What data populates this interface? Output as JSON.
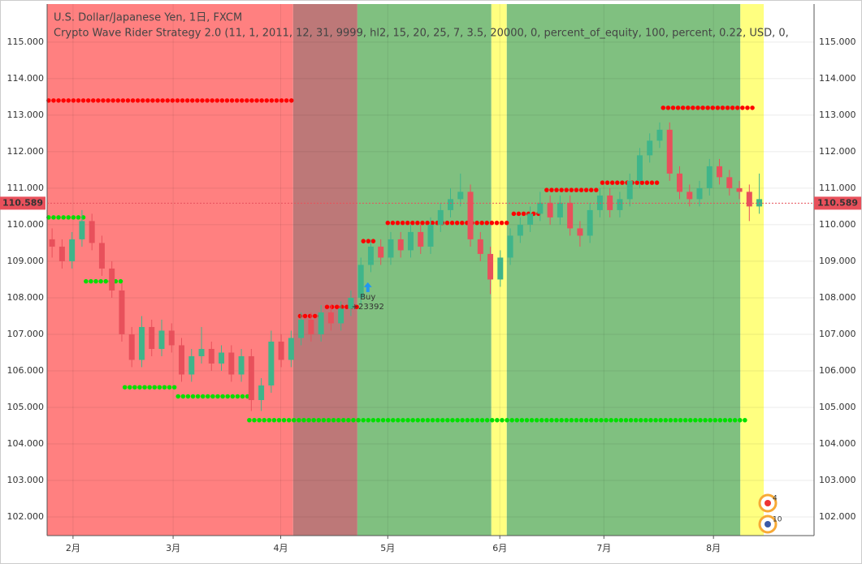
{
  "chart_data": {
    "type": "candlestick",
    "title": "U.S. Dollar/Japanese Yen, 1日, FXCM",
    "subtitle": "Crypto Wave Rider Strategy 2.0 (11, 1, 2011, 12, 31, 9999, hl2, 15, 20, 25, 7, 3.5, 20000, 0, percent_of_equity, 100, percent, 0.22, USD, 0,",
    "xlim": [
      0,
      154
    ],
    "ylim": [
      101.49,
      116.04
    ],
    "xticks": [
      {
        "value": 5.2,
        "label": "2月"
      },
      {
        "value": 25.3,
        "label": "3月"
      },
      {
        "value": 46.9,
        "label": "4月"
      },
      {
        "value": 68.4,
        "label": "5月"
      },
      {
        "value": 90.9,
        "label": "6月"
      },
      {
        "value": 111.8,
        "label": "7月"
      },
      {
        "value": 133.8,
        "label": "8月"
      }
    ],
    "yticks": [
      {
        "value": 102,
        "label": "102.000"
      },
      {
        "value": 103,
        "label": "103.000"
      },
      {
        "value": 104,
        "label": "104.000"
      },
      {
        "value": 105,
        "label": "105.000"
      },
      {
        "value": 106,
        "label": "106.000"
      },
      {
        "value": 107,
        "label": "107.000"
      },
      {
        "value": 108,
        "label": "108.000"
      },
      {
        "value": 109,
        "label": "109.000"
      },
      {
        "value": 110,
        "label": "110.000"
      },
      {
        "value": 111,
        "label": "111.000"
      },
      {
        "value": 112,
        "label": "112.000"
      },
      {
        "value": 113,
        "label": "113.000"
      },
      {
        "value": 114,
        "label": "114.000"
      },
      {
        "value": 115,
        "label": "115.000"
      }
    ],
    "grid": true,
    "up_color": "#3fb58a",
    "down_color": "#e8505b",
    "zones": [
      {
        "x": [
          0,
          49.4
        ],
        "color": "#ff8080"
      },
      {
        "x": [
          49.4,
          62.3
        ],
        "color": "#bd7878"
      },
      {
        "x": [
          62.3,
          89.2
        ],
        "color": "#80c080"
      },
      {
        "x": [
          89.2,
          92.3
        ],
        "color": "#ffff80"
      },
      {
        "x": [
          92.3,
          139.2
        ],
        "color": "#80c080"
      },
      {
        "x": [
          139.2,
          143.9
        ],
        "color": "#ffff80"
      }
    ],
    "x": [
      1,
      3,
      5,
      7,
      9,
      11,
      13,
      15,
      17,
      19,
      21,
      23,
      25,
      27,
      29,
      31,
      33,
      35,
      37,
      39,
      41,
      43,
      45,
      47,
      49,
      51,
      53,
      55,
      57,
      59,
      61,
      63,
      65,
      67,
      69,
      71,
      73,
      75,
      77,
      79,
      81,
      83,
      85,
      87,
      89,
      91,
      93,
      95,
      97,
      99,
      101,
      103,
      105,
      107,
      109,
      111,
      113,
      115,
      117,
      119,
      121,
      123,
      125,
      127,
      129,
      131,
      133,
      135,
      137,
      139,
      141,
      143
    ],
    "open": [
      109.6,
      109.4,
      109.0,
      109.6,
      110.1,
      109.5,
      108.8,
      108.2,
      107.0,
      106.3,
      107.2,
      106.6,
      107.1,
      106.7,
      105.9,
      106.4,
      106.6,
      106.2,
      106.5,
      105.9,
      106.4,
      105.2,
      105.6,
      106.8,
      106.3,
      106.9,
      107.4,
      107.0,
      107.6,
      107.3,
      107.7,
      108.0,
      108.9,
      109.4,
      109.1,
      109.6,
      109.3,
      109.8,
      109.4,
      110.0,
      110.4,
      110.7,
      110.9,
      109.6,
      109.2,
      108.5,
      109.1,
      109.7,
      110.0,
      110.3,
      110.6,
      110.2,
      110.6,
      109.9,
      109.7,
      110.4,
      110.8,
      110.4,
      110.7,
      111.2,
      111.9,
      112.3,
      112.6,
      111.4,
      110.9,
      110.7,
      111.0,
      111.6,
      111.3,
      111.0,
      110.9,
      110.5
    ],
    "high": [
      109.9,
      109.6,
      109.8,
      110.4,
      110.3,
      109.7,
      109.0,
      108.4,
      107.2,
      107.5,
      107.4,
      107.4,
      107.3,
      106.9,
      106.6,
      107.2,
      106.8,
      106.7,
      106.7,
      106.6,
      106.6,
      105.8,
      107.1,
      107.0,
      107.1,
      107.6,
      107.6,
      107.8,
      107.8,
      107.9,
      108.2,
      109.1,
      109.6,
      109.6,
      109.8,
      109.8,
      110.0,
      110.0,
      110.2,
      110.6,
      111.0,
      111.4,
      111.1,
      109.8,
      109.4,
      109.3,
      109.9,
      110.2,
      110.5,
      110.9,
      110.8,
      110.8,
      110.8,
      110.1,
      110.6,
      111.0,
      111.0,
      110.9,
      111.4,
      112.1,
      112.5,
      112.8,
      112.8,
      111.6,
      111.1,
      111.2,
      111.8,
      111.8,
      111.5,
      111.2,
      111.1,
      111.4
    ],
    "low": [
      109.1,
      108.8,
      108.8,
      109.4,
      109.3,
      108.6,
      108.0,
      106.8,
      106.1,
      106.1,
      106.4,
      106.4,
      106.5,
      105.7,
      105.7,
      106.2,
      106.0,
      106.0,
      105.7,
      105.7,
      104.9,
      104.9,
      105.4,
      106.1,
      106.1,
      106.7,
      106.8,
      106.8,
      107.1,
      107.1,
      107.5,
      107.8,
      108.7,
      108.9,
      108.9,
      109.1,
      109.1,
      109.2,
      109.2,
      109.8,
      110.2,
      110.5,
      109.4,
      109.0,
      108.1,
      108.3,
      108.9,
      109.5,
      109.8,
      110.1,
      110.0,
      110.0,
      109.7,
      109.4,
      109.5,
      110.2,
      110.2,
      110.2,
      110.5,
      111.0,
      111.7,
      112.1,
      111.2,
      110.7,
      110.5,
      110.5,
      110.8,
      111.1,
      110.8,
      110.7,
      110.1,
      110.3
    ],
    "close": [
      109.4,
      109.0,
      109.6,
      110.1,
      109.5,
      108.8,
      108.2,
      107.0,
      106.3,
      107.2,
      106.6,
      107.1,
      106.7,
      105.9,
      106.4,
      106.6,
      106.2,
      106.5,
      105.9,
      106.4,
      105.2,
      105.6,
      106.8,
      106.3,
      106.9,
      107.4,
      107.0,
      107.6,
      107.3,
      107.7,
      108.0,
      108.9,
      109.4,
      109.1,
      109.6,
      109.3,
      109.8,
      109.4,
      110.0,
      110.4,
      110.7,
      110.9,
      109.6,
      109.2,
      108.5,
      109.1,
      109.7,
      110.0,
      110.3,
      110.6,
      110.2,
      110.6,
      109.9,
      109.7,
      110.4,
      110.8,
      110.4,
      110.7,
      111.2,
      111.9,
      112.3,
      112.6,
      111.4,
      110.9,
      110.7,
      111.0,
      111.6,
      111.3,
      111.0,
      110.9,
      110.5,
      110.7
    ],
    "stops": [
      {
        "y": 113.4,
        "x": [
          0.3,
          50
        ],
        "color": "#ff0000"
      },
      {
        "y": 107.5,
        "x": [
          50.8,
          55.2
        ],
        "color": "#ff0000"
      },
      {
        "y": 107.75,
        "x": [
          56.2,
          62.5
        ],
        "color": "#ff0000"
      },
      {
        "y": 109.55,
        "x": [
          63.5,
          66.4
        ],
        "color": "#ff0000"
      },
      {
        "y": 110.05,
        "x": [
          68.4,
          92.7
        ],
        "color": "#ff0000"
      },
      {
        "y": 110.3,
        "x": [
          93.7,
          99.2
        ],
        "color": "#ff0000"
      },
      {
        "y": 110.95,
        "x": [
          100.3,
          111
        ],
        "color": "#ff0000"
      },
      {
        "y": 111.15,
        "x": [
          111.5,
          123.2
        ],
        "color": "#ff0000"
      },
      {
        "y": 113.2,
        "x": [
          123.7,
          141.8
        ],
        "color": "#ff0000"
      },
      {
        "y": 110.2,
        "x": [
          0.3,
          7.5
        ],
        "color": "#00e000"
      },
      {
        "y": 108.45,
        "x": [
          7.8,
          15.3
        ],
        "color": "#00e000"
      },
      {
        "y": 105.55,
        "x": [
          15.6,
          25.8
        ],
        "color": "#00e000"
      },
      {
        "y": 105.3,
        "x": [
          26.3,
          40.3
        ],
        "color": "#00e000"
      },
      {
        "y": 104.65,
        "x": [
          40.6,
          140.9
        ],
        "color": "#00e000"
      }
    ],
    "last_price": {
      "value": 110.589,
      "label": "110.589"
    },
    "trade": {
      "x": 64.4,
      "y": 108.2,
      "label": "Buy",
      "profit": "+23392"
    },
    "events": [
      "4",
      "10"
    ]
  }
}
